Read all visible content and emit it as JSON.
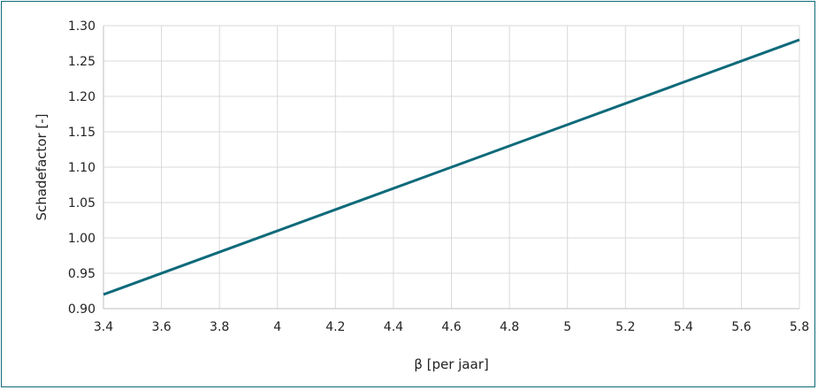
{
  "chart_data": {
    "type": "line",
    "title": "",
    "xlabel": "β [per jaar]",
    "ylabel": "Schadefactor [-]",
    "xlim": [
      3.4,
      5.8
    ],
    "ylim": [
      0.9,
      1.3
    ],
    "x_ticks": [
      "3.4",
      "3.6",
      "3.8",
      "4",
      "4.2",
      "4.4",
      "4.6",
      "4.8",
      "5",
      "5.2",
      "5.4",
      "5.6",
      "5.8"
    ],
    "y_ticks": [
      "0.90",
      "0.95",
      "1.00",
      "1.05",
      "1.10",
      "1.15",
      "1.20",
      "1.25",
      "1.30"
    ],
    "grid": true,
    "legend": "none",
    "series": [
      {
        "x": [
          3.4,
          5.8
        ],
        "y": [
          0.92,
          1.28
        ],
        "color": "#0e6a7a"
      }
    ],
    "colors": {
      "grid": "#d9d9d9",
      "axis": "#bfbfbf",
      "frame": "#0e6a7a"
    }
  }
}
